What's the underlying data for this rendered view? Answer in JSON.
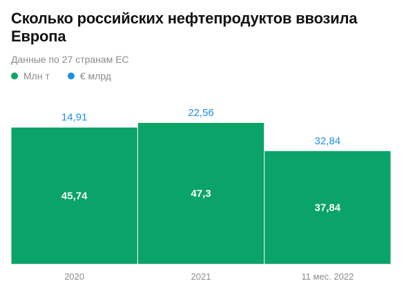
{
  "title": "Сколько российских нефтепродуктов ввозила Европа",
  "subtitle": "Данные по 27 странам ЕС",
  "colors": {
    "volume": "#0aa368",
    "value": "#1b8fe6",
    "axis": "#d9d9d9",
    "tick": "#8a8a8a",
    "inner_label": "#ffffff"
  },
  "chart_data": {
    "type": "bar",
    "categories": [
      "2020",
      "2021",
      "11 мес. 2022"
    ],
    "series": [
      {
        "name": "Млн т",
        "values": [
          45.74,
          47.3,
          37.84
        ],
        "labels": [
          "45,74",
          "47,3",
          "37,84"
        ]
      },
      {
        "name": "€ млрд",
        "values": [
          14.91,
          22.56,
          32.84
        ],
        "labels": [
          "14,91",
          "22,56",
          "32,84"
        ]
      }
    ],
    "ylim": [
      0,
      47.3
    ],
    "grid": false,
    "legend": "top-left"
  }
}
